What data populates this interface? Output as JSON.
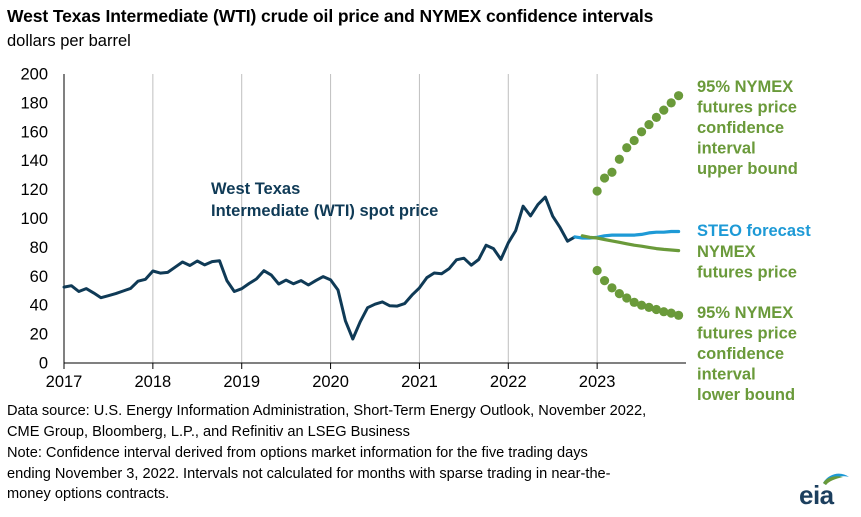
{
  "header": {
    "title": "West Texas Intermediate (WTI) crude oil price and NYMEX confidence intervals",
    "subtitle": "dollars per barrel"
  },
  "footer": {
    "source_line1": "Data source: U.S. Energy Information Administration, Short-Term Energy Outlook, November 2022,",
    "source_line2": "CME Group, Bloomberg, L.P., and Refinitiv an LSEG Business",
    "note_line1": "Note: Confidence interval derived from options market information for the five trading days",
    "note_line2": "ending November 3, 2022. Intervals not calculated for months with sparse trading in near-the-",
    "note_line3": "money options contracts."
  },
  "logo": {
    "text": "eia",
    "icon": "eia-logo-icon"
  },
  "colors": {
    "wti": "#0f3a56",
    "steo": "#1e9ad6",
    "nymex": "#6a9a3a",
    "grid": "#bfbfbf",
    "axis": "#000000"
  },
  "chart_data": {
    "type": "line",
    "title": "West Texas Intermediate (WTI) crude oil price and NYMEX confidence intervals",
    "ylabel": "dollars per barrel",
    "xlabel": "",
    "xlim": [
      2017,
      2024
    ],
    "ylim": [
      0,
      200
    ],
    "yticks": [
      0,
      20,
      40,
      60,
      80,
      100,
      120,
      140,
      160,
      180,
      200
    ],
    "xticks": [
      "2017",
      "2018",
      "2019",
      "2020",
      "2021",
      "2022",
      "2023"
    ],
    "grid": "vertical at year boundaries",
    "series": [
      {
        "name": "West Texas Intermediate (WTI) spot price",
        "label_lines": [
          "West Texas",
          "Intermediate (WTI) spot price"
        ],
        "style": "solid",
        "x": [
          "2017-01",
          "2017-02",
          "2017-03",
          "2017-04",
          "2017-05",
          "2017-06",
          "2017-07",
          "2017-08",
          "2017-09",
          "2017-10",
          "2017-11",
          "2017-12",
          "2018-01",
          "2018-02",
          "2018-03",
          "2018-04",
          "2018-05",
          "2018-06",
          "2018-07",
          "2018-08",
          "2018-09",
          "2018-10",
          "2018-11",
          "2018-12",
          "2019-01",
          "2019-02",
          "2019-03",
          "2019-04",
          "2019-05",
          "2019-06",
          "2019-07",
          "2019-08",
          "2019-09",
          "2019-10",
          "2019-11",
          "2019-12",
          "2020-01",
          "2020-02",
          "2020-03",
          "2020-04",
          "2020-05",
          "2020-06",
          "2020-07",
          "2020-08",
          "2020-09",
          "2020-10",
          "2020-11",
          "2020-12",
          "2021-01",
          "2021-02",
          "2021-03",
          "2021-04",
          "2021-05",
          "2021-06",
          "2021-07",
          "2021-08",
          "2021-09",
          "2021-10",
          "2021-11",
          "2021-12",
          "2022-01",
          "2022-02",
          "2022-03",
          "2022-04",
          "2022-05",
          "2022-06",
          "2022-07",
          "2022-08",
          "2022-09",
          "2022-10"
        ],
        "values": [
          52.5,
          53.5,
          49.5,
          51.5,
          48.5,
          45.2,
          46.6,
          48.0,
          49.8,
          51.6,
          56.6,
          57.9,
          63.7,
          62.2,
          62.7,
          66.3,
          69.9,
          67.5,
          70.6,
          67.9,
          70.2,
          70.8,
          57.0,
          49.5,
          51.4,
          55.0,
          58.2,
          63.9,
          60.8,
          54.7,
          57.4,
          54.8,
          57.0,
          54.0,
          57.0,
          59.8,
          57.5,
          50.5,
          29.2,
          16.6,
          28.5,
          38.3,
          40.7,
          42.3,
          39.6,
          39.4,
          41.1,
          47.0,
          52.0,
          59.0,
          62.3,
          61.7,
          65.2,
          71.4,
          72.5,
          67.7,
          71.6,
          81.5,
          79.2,
          71.7,
          83.2,
          91.6,
          108.5,
          101.8,
          109.6,
          114.8,
          101.6,
          93.7,
          84.3,
          87.3
        ]
      },
      {
        "name": "STEO forecast",
        "style": "solid",
        "x": [
          "2022-10",
          "2022-11",
          "2022-12",
          "2023-01",
          "2023-02",
          "2023-03",
          "2023-04",
          "2023-05",
          "2023-06",
          "2023-07",
          "2023-08",
          "2023-09",
          "2023-10",
          "2023-11",
          "2023-12"
        ],
        "values": [
          87.3,
          86.5,
          86.5,
          87.0,
          88.0,
          88.5,
          88.5,
          88.5,
          88.5,
          89.0,
          90.0,
          90.5,
          90.5,
          91.0,
          91.0
        ]
      },
      {
        "name": "NYMEX futures price",
        "label_lines": [
          "NYMEX",
          "futures price"
        ],
        "style": "solid",
        "x": [
          "2022-11",
          "2022-12",
          "2023-01",
          "2023-02",
          "2023-03",
          "2023-04",
          "2023-05",
          "2023-06",
          "2023-07",
          "2023-08",
          "2023-09",
          "2023-10",
          "2023-11",
          "2023-12"
        ],
        "values": [
          88.0,
          87.0,
          86.5,
          85.5,
          84.5,
          83.5,
          82.5,
          81.5,
          80.8,
          80.0,
          79.2,
          78.6,
          78.2,
          77.8
        ]
      },
      {
        "name": "95% NYMEX futures price confidence interval upper bound",
        "label_lines": [
          "95% NYMEX",
          "futures price",
          "confidence",
          "interval",
          "upper bound"
        ],
        "style": "dots",
        "x": [
          "2023-01",
          "2023-02",
          "2023-03",
          "2023-04",
          "2023-05",
          "2023-06",
          "2023-07",
          "2023-08",
          "2023-09",
          "2023-10",
          "2023-11",
          "2023-12"
        ],
        "values": [
          119,
          128,
          132,
          141,
          149,
          154,
          160,
          165,
          170,
          175,
          180,
          185
        ]
      },
      {
        "name": "95% NYMEX futures price confidence interval lower bound",
        "label_lines": [
          "95% NYMEX",
          "futures price",
          "confidence",
          "interval",
          "lower bound"
        ],
        "style": "dots",
        "x": [
          "2023-01",
          "2023-02",
          "2023-03",
          "2023-04",
          "2023-05",
          "2023-06",
          "2023-07",
          "2023-08",
          "2023-09",
          "2023-10",
          "2023-11",
          "2023-12"
        ],
        "values": [
          64,
          57,
          52,
          48,
          45,
          42,
          40,
          38.5,
          37,
          35.5,
          34.5,
          33
        ]
      }
    ],
    "annotations": [
      {
        "text": "STEO forecast",
        "series": "STEO forecast"
      }
    ]
  }
}
